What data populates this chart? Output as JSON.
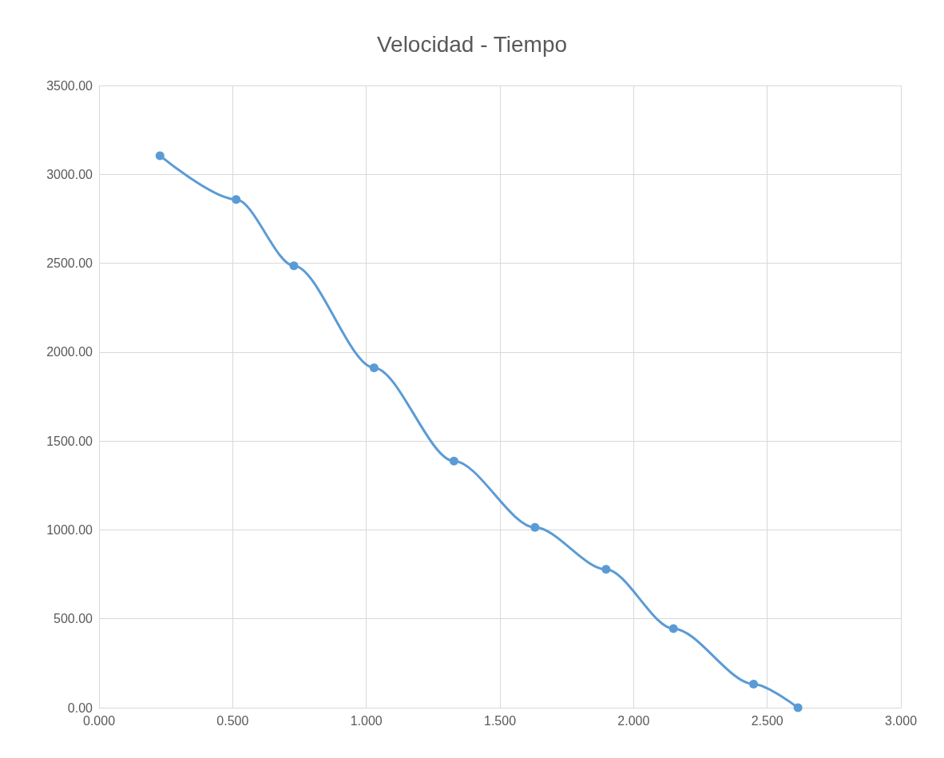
{
  "chart_data": {
    "type": "line",
    "title": "Velocidad - Tiempo",
    "x": [
      0.228,
      0.513,
      0.729,
      1.029,
      1.328,
      1.631,
      1.897,
      2.149,
      2.449,
      2.615
    ],
    "series": [
      {
        "color": "#5b9bd5",
        "values": [
          3105,
          2859,
          2486,
          1912,
          1387,
          1014,
          778,
          445,
          133,
          0
        ]
      }
    ],
    "xlim": [
      0,
      3
    ],
    "xticks": [
      {
        "value": 0,
        "label": "0.000"
      },
      {
        "value": 0.5,
        "label": "0.500"
      },
      {
        "value": 1,
        "label": "1.000"
      },
      {
        "value": 1.5,
        "label": "1.500"
      },
      {
        "value": 2,
        "label": "2.000"
      },
      {
        "value": 2.5,
        "label": "2.500"
      },
      {
        "value": 3,
        "label": "3.000"
      }
    ],
    "ylim": [
      0,
      3500
    ],
    "yticks": [
      {
        "value": 0,
        "label": "0.00"
      },
      {
        "value": 500,
        "label": "500.00"
      },
      {
        "value": 1000,
        "label": "1000.00"
      },
      {
        "value": 1500,
        "label": "1500.00"
      },
      {
        "value": 2000,
        "label": "2000.00"
      },
      {
        "value": 2500,
        "label": "2500.00"
      },
      {
        "value": 3000,
        "label": "3000.00"
      },
      {
        "value": 3500,
        "label": "3500.00"
      }
    ],
    "grid": true,
    "marker": "circle",
    "line_style": "solid"
  }
}
